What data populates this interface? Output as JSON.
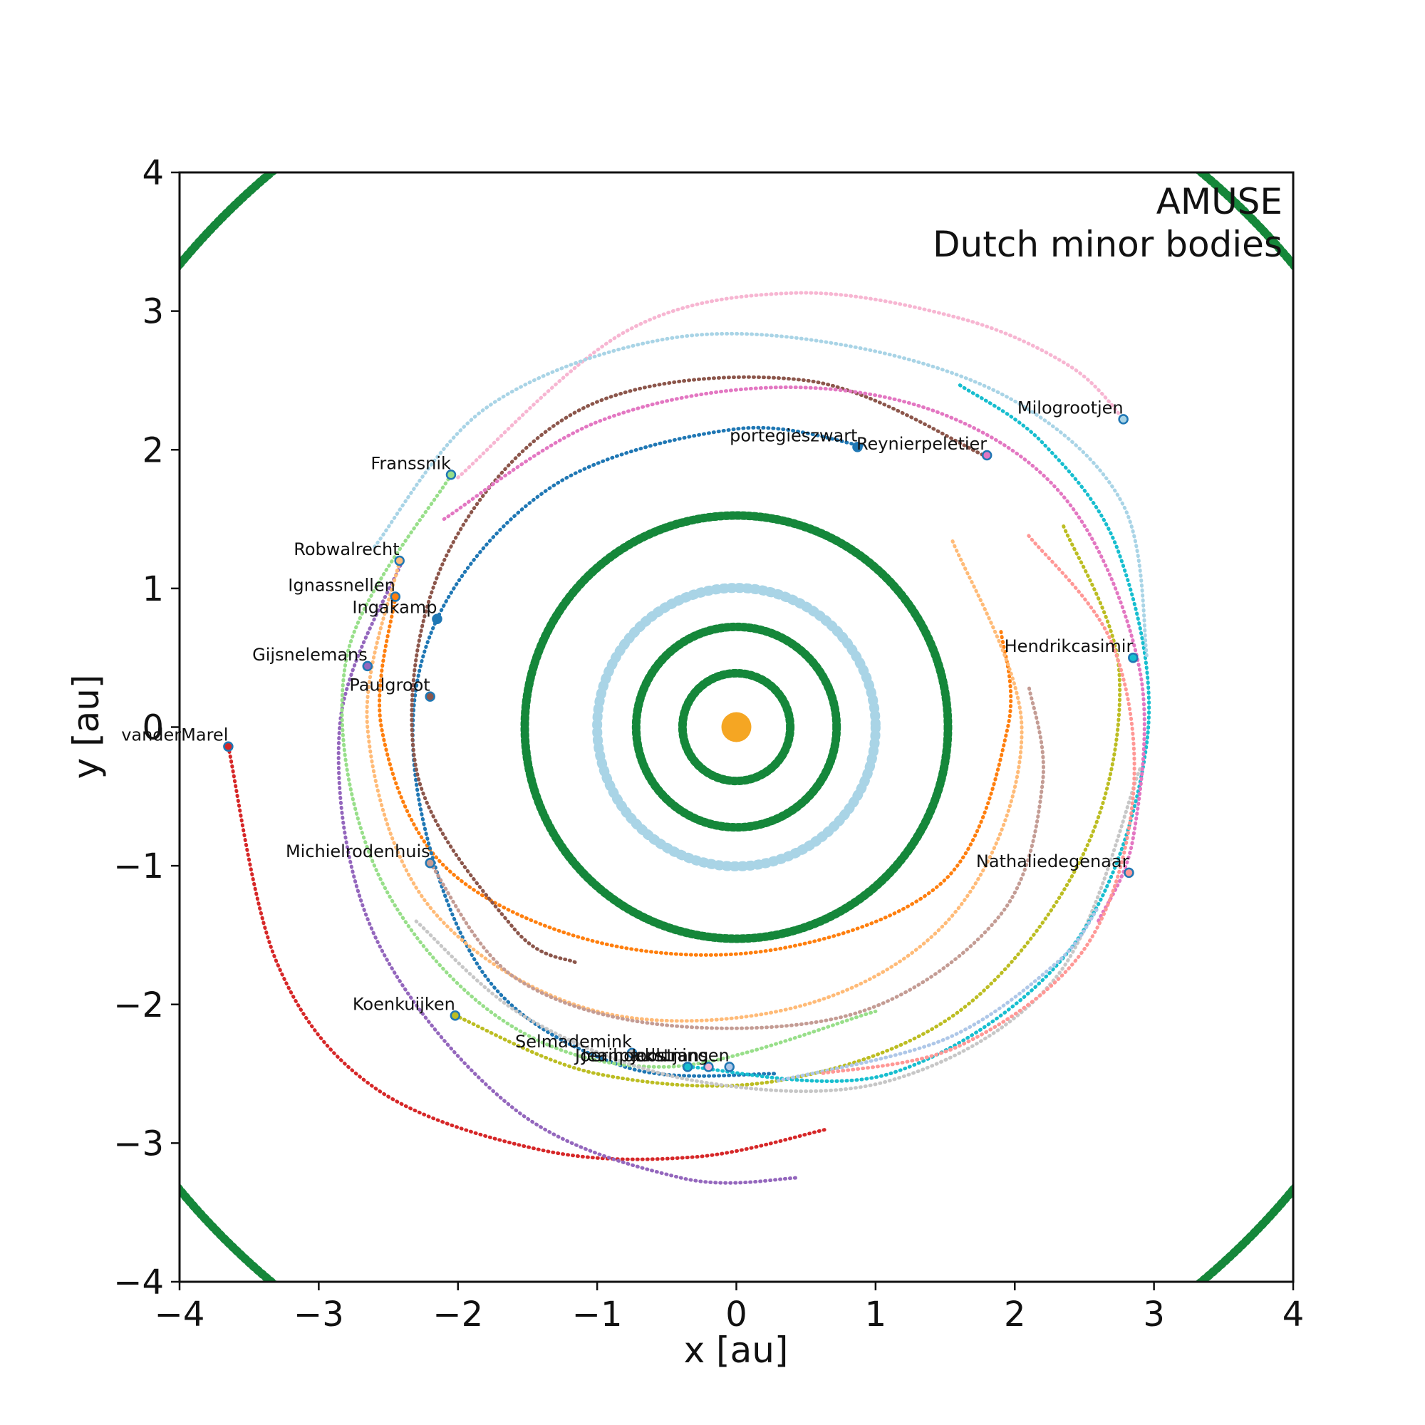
{
  "chart_data": {
    "type": "scatter",
    "xlabel": "x [au]",
    "ylabel": "y [au]",
    "xlim": [
      -4,
      4
    ],
    "ylim": [
      -4,
      4
    ],
    "xticks": [
      "−4",
      "−3",
      "−2",
      "−1",
      "0",
      "1",
      "2",
      "3",
      "4"
    ],
    "yticks": [
      "−4",
      "−3",
      "−2",
      "−1",
      "0",
      "1",
      "2",
      "3",
      "4"
    ],
    "annotations": [
      "AMUSE",
      "Dutch minor bodies"
    ],
    "grid": false,
    "legend": "none",
    "sun": {
      "x": 0,
      "y": 0,
      "color": "#f5a623"
    },
    "planets": [
      {
        "radius": 0.387,
        "color": "#15873a"
      },
      {
        "radius": 0.72,
        "color": "#15873a"
      },
      {
        "radius": 1.0,
        "color": "#a9d4e6"
      },
      {
        "radius": 1.52,
        "color": "#15873a"
      },
      {
        "radius": 5.2,
        "color": "#15873a"
      }
    ],
    "bodies": [
      {
        "name": "vanderMarel",
        "x": -3.65,
        "y": -0.14,
        "color": "#d62728",
        "trail": [
          [
            -3.65,
            -0.14
          ],
          [
            -3.3,
            -1.7
          ],
          [
            -2.6,
            -2.6
          ],
          [
            -1.4,
            -3.05
          ],
          [
            -0.3,
            -3.1
          ],
          [
            0.65,
            -2.9
          ]
        ]
      },
      {
        "name": "Gijsnelemans",
        "x": -2.65,
        "y": 0.44,
        "color": "#9467bd",
        "trail": [
          [
            -2.4,
            1.2
          ],
          [
            -2.85,
            0.0
          ],
          [
            -2.6,
            -1.5
          ],
          [
            -1.6,
            -2.75
          ],
          [
            -0.4,
            -3.25
          ],
          [
            0.45,
            -3.25
          ]
        ]
      },
      {
        "name": "Ignassnellen",
        "x": -2.45,
        "y": 0.94,
        "color": "#ff7f0e",
        "trail": [
          [
            -2.45,
            0.94
          ],
          [
            -2.55,
            0.0
          ],
          [
            -2.1,
            -1.0
          ],
          [
            -1.0,
            -1.55
          ],
          [
            0.3,
            -1.6
          ],
          [
            1.5,
            -1.1
          ],
          [
            1.95,
            0.0
          ],
          [
            1.9,
            0.7
          ]
        ]
      },
      {
        "name": "Ingakamp",
        "x": -2.15,
        "y": 0.78,
        "color": "#1f77b4",
        "trail": [
          [
            0.9,
            2.03
          ],
          [
            0.0,
            2.15
          ],
          [
            -1.3,
            1.75
          ],
          [
            -2.15,
            0.78
          ],
          [
            -2.3,
            -0.4
          ],
          [
            -1.8,
            -1.8
          ],
          [
            -0.8,
            -2.45
          ],
          [
            0.3,
            -2.5
          ]
        ]
      },
      {
        "name": "Paulgroot",
        "x": -2.2,
        "y": 0.22,
        "color": "#8c564b",
        "trail": [
          [
            1.8,
            1.95
          ],
          [
            0.5,
            2.5
          ],
          [
            -1.1,
            2.3
          ],
          [
            -2.1,
            1.2
          ],
          [
            -2.3,
            -0.3
          ],
          [
            -1.6,
            -1.45
          ],
          [
            -1.15,
            -1.7
          ]
        ]
      },
      {
        "name": "Franssnik",
        "x": -2.05,
        "y": 1.82,
        "color": "#98df8a",
        "trail": [
          [
            -2.05,
            1.82
          ],
          [
            -2.8,
            0.5
          ],
          [
            -2.6,
            -1.0
          ],
          [
            -1.7,
            -2.1
          ],
          [
            -0.5,
            -2.45
          ],
          [
            1.0,
            -2.05
          ]
        ]
      },
      {
        "name": "Robwalrecht",
        "x": -2.42,
        "y": 1.2,
        "color": "#ffbb78",
        "trail": [
          [
            -2.42,
            1.2
          ],
          [
            -2.65,
            0.0
          ],
          [
            -2.2,
            -1.3
          ],
          [
            -1.0,
            -2.05
          ],
          [
            0.5,
            -2.0
          ],
          [
            1.6,
            -1.3
          ],
          [
            2.05,
            0.0
          ],
          [
            1.55,
            1.35
          ]
        ]
      },
      {
        "name": "Michielrodenhuis",
        "x": -2.2,
        "y": -0.98,
        "color": "#c49c94",
        "trail": [
          [
            -2.2,
            -0.98
          ],
          [
            -1.6,
            -1.8
          ],
          [
            -0.5,
            -2.15
          ],
          [
            0.9,
            -2.05
          ],
          [
            1.9,
            -1.35
          ],
          [
            2.2,
            -0.4
          ],
          [
            2.1,
            0.3
          ]
        ]
      },
      {
        "name": "Koenkuijken",
        "x": -2.02,
        "y": -2.08,
        "color": "#bcbd22",
        "trail": [
          [
            -2.02,
            -2.08
          ],
          [
            -1.0,
            -2.5
          ],
          [
            0.3,
            -2.55
          ],
          [
            1.6,
            -2.05
          ],
          [
            2.5,
            -0.9
          ],
          [
            2.75,
            0.4
          ],
          [
            2.35,
            1.45
          ]
        ]
      },
      {
        "name": "Selmademink",
        "x": -0.75,
        "y": -2.35,
        "color": "#c7c7c7",
        "trail": [
          [
            -2.3,
            -1.4
          ],
          [
            -1.5,
            -2.1
          ],
          [
            -0.3,
            -2.55
          ],
          [
            1.1,
            -2.55
          ],
          [
            2.3,
            -1.8
          ],
          [
            2.9,
            -0.3
          ]
        ]
      },
      {
        "name": "Joerihoekstra",
        "x": -0.35,
        "y": -2.45,
        "color": "#17becf",
        "trail": [
          [
            -0.35,
            -2.45
          ],
          [
            1.1,
            -2.5
          ],
          [
            2.4,
            -1.6
          ],
          [
            2.95,
            -0.1
          ],
          [
            2.75,
            1.25
          ],
          [
            2.2,
            2.05
          ],
          [
            1.6,
            2.47
          ]
        ]
      },
      {
        "name": "Jeanpaulluning",
        "x": -0.2,
        "y": -2.45,
        "color": "#f7b6d2",
        "trail": [
          [
            -2.0,
            1.8
          ],
          [
            -0.8,
            2.85
          ],
          [
            0.4,
            3.13
          ],
          [
            1.6,
            2.95
          ],
          [
            2.4,
            2.6
          ],
          [
            2.8,
            2.2
          ]
        ]
      },
      {
        "name": "Joostjansen",
        "x": -0.05,
        "y": -2.45,
        "color": "#aec7e8",
        "trail": [
          [
            0.3,
            -2.55
          ],
          [
            1.5,
            -2.25
          ],
          [
            2.3,
            -1.7
          ],
          [
            2.6,
            -1.3
          ]
        ]
      },
      {
        "name": "portegieszwart",
        "x": 0.87,
        "y": 2.02,
        "color": "#1f77b4",
        "trail": []
      },
      {
        "name": "Reynierpeletier",
        "x": 1.8,
        "y": 1.96,
        "color": "#e377c2",
        "trail": [
          [
            -2.1,
            1.5
          ],
          [
            -1.0,
            2.2
          ],
          [
            0.3,
            2.45
          ],
          [
            1.5,
            2.25
          ],
          [
            2.4,
            1.6
          ],
          [
            2.9,
            0.4
          ],
          [
            2.85,
            -0.8
          ],
          [
            2.6,
            -1.4
          ]
        ]
      },
      {
        "name": "Milogrootjen",
        "x": 2.78,
        "y": 2.22,
        "color": "#a9d4e6",
        "trail": [
          [
            -2.6,
            1.3
          ],
          [
            -1.8,
            2.3
          ],
          [
            -0.5,
            2.8
          ],
          [
            0.8,
            2.75
          ],
          [
            2.0,
            2.35
          ],
          [
            2.78,
            1.6
          ],
          [
            2.95,
            0.5
          ]
        ]
      },
      {
        "name": "Hendrikcasimir",
        "x": 2.85,
        "y": 0.5,
        "color": "#17becf",
        "trail": []
      },
      {
        "name": "Nathaliedegenaar",
        "x": 2.82,
        "y": -1.05,
        "color": "#ff9896",
        "trail": [
          [
            2.1,
            1.38
          ],
          [
            2.7,
            0.6
          ],
          [
            2.85,
            -0.5
          ],
          [
            2.5,
            -1.6
          ],
          [
            1.6,
            -2.3
          ],
          [
            0.6,
            -2.5
          ]
        ]
      }
    ]
  },
  "labels": {
    "x_axis": "x [au]",
    "y_axis": "y [au]",
    "annot_line1": "AMUSE",
    "annot_line2": "Dutch minor bodies"
  }
}
